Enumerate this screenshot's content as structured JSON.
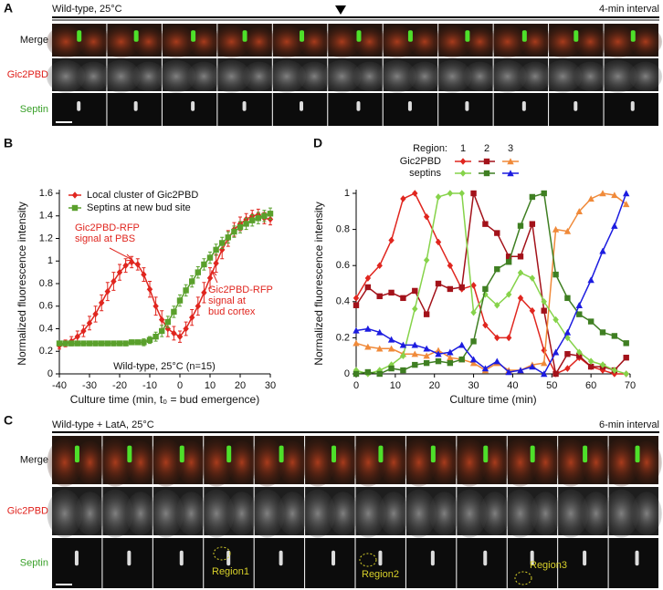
{
  "panel_a": {
    "label": "A",
    "condition": "Wild-type, 25°C",
    "interval": "4-min interval",
    "rows": [
      "Merge",
      "Gic2PBD",
      "Septin"
    ]
  },
  "panel_c": {
    "label": "C",
    "condition": "Wild-type + LatA, 25°C",
    "interval": "6-min interval",
    "rows": [
      "Merge",
      "Gic2PBD",
      "Septin"
    ],
    "regions": [
      "Region1",
      "Region2",
      "Region3"
    ]
  },
  "chart_data": [
    {
      "type": "line",
      "panel": "B",
      "x_label": "Culture time (min, t₀ = bud emergence)",
      "y_label": "Normalized fluorescence intensity",
      "xlim": [
        -40,
        30
      ],
      "xticks": [
        -40,
        -30,
        -20,
        -10,
        0,
        10,
        20,
        30
      ],
      "ylim": [
        0,
        1.6
      ],
      "yticks": [
        0,
        0.2,
        0.4,
        0.6,
        0.8,
        1,
        1.2,
        1.4,
        1.6
      ],
      "legend": "upper left",
      "annotations": [
        {
          "lines": [
            "Gic2PBD-RFP",
            "signal at PBS"
          ]
        },
        {
          "lines": [
            "Gic2PBD-RFP",
            "signal at",
            "bud cortex"
          ]
        },
        {
          "lines": [
            "Wild-type, 25°C (n=15)"
          ]
        }
      ],
      "x": [
        -40,
        -38,
        -36,
        -34,
        -32,
        -30,
        -28,
        -26,
        -24,
        -22,
        -20,
        -18,
        -16,
        -14,
        -12,
        -10,
        -8,
        -6,
        -4,
        -2,
        0,
        2,
        4,
        6,
        8,
        10,
        12,
        14,
        16,
        18,
        20,
        22,
        24,
        26,
        28,
        30
      ],
      "series": [
        {
          "name": "Local cluster of Gic2PBD",
          "color": "#e0261f",
          "marker": "diamond",
          "values": [
            0.25,
            0.27,
            0.29,
            0.33,
            0.38,
            0.45,
            0.53,
            0.63,
            0.73,
            0.82,
            0.9,
            0.96,
            0.99,
            0.97,
            0.88,
            0.75,
            0.6,
            0.48,
            0.4,
            0.36,
            0.33,
            0.4,
            0.5,
            0.6,
            0.72,
            0.85,
            0.98,
            1.1,
            1.2,
            1.28,
            1.33,
            1.37,
            1.4,
            1.41,
            1.38,
            1.37
          ],
          "errors": [
            0.03,
            0.03,
            0.04,
            0.05,
            0.05,
            0.06,
            0.07,
            0.07,
            0.08,
            0.08,
            0.07,
            0.06,
            0.05,
            0.05,
            0.06,
            0.07,
            0.08,
            0.08,
            0.07,
            0.06,
            0.05,
            0.06,
            0.07,
            0.08,
            0.09,
            0.09,
            0.08,
            0.08,
            0.07,
            0.06,
            0.06,
            0.05,
            0.05,
            0.05,
            0.05,
            0.05
          ]
        },
        {
          "name": "Septins at new bud site",
          "color": "#5aa02c",
          "marker": "square",
          "values": [
            0.27,
            0.27,
            0.27,
            0.27,
            0.27,
            0.27,
            0.27,
            0.27,
            0.27,
            0.27,
            0.27,
            0.27,
            0.28,
            0.28,
            0.28,
            0.3,
            0.33,
            0.38,
            0.46,
            0.55,
            0.65,
            0.74,
            0.82,
            0.9,
            0.97,
            1.03,
            1.1,
            1.16,
            1.21,
            1.26,
            1.3,
            1.33,
            1.36,
            1.38,
            1.4,
            1.42
          ],
          "errors": [
            0.02,
            0.02,
            0.02,
            0.02,
            0.02,
            0.02,
            0.02,
            0.02,
            0.02,
            0.02,
            0.02,
            0.02,
            0.02,
            0.02,
            0.03,
            0.03,
            0.04,
            0.05,
            0.05,
            0.05,
            0.05,
            0.05,
            0.05,
            0.05,
            0.05,
            0.05,
            0.05,
            0.05,
            0.05,
            0.05,
            0.05,
            0.05,
            0.05,
            0.05,
            0.05,
            0.05
          ]
        }
      ]
    },
    {
      "type": "line",
      "panel": "D",
      "x_label": "Culture time (min)",
      "y_label": "Normalized fluorescence intensity",
      "xlim": [
        0,
        70
      ],
      "xticks": [
        0,
        10,
        20,
        30,
        40,
        50,
        60,
        70
      ],
      "ylim": [
        0,
        1
      ],
      "yticks": [
        0,
        0.2,
        0.4,
        0.6,
        0.8,
        1
      ],
      "legend": {
        "title": "Region:",
        "regions": [
          "1",
          "2",
          "3"
        ],
        "rows": [
          "Gic2PBD",
          "septins"
        ]
      },
      "x": [
        0,
        3,
        6,
        9,
        12,
        15,
        18,
        21,
        24,
        27,
        30,
        33,
        36,
        39,
        42,
        45,
        48,
        51,
        54,
        57,
        60,
        63,
        66,
        69
      ],
      "series": [
        {
          "color": "#e0261f",
          "marker": "diamond",
          "values": [
            0.42,
            0.53,
            0.6,
            0.74,
            0.97,
            1.0,
            0.87,
            0.73,
            0.6,
            0.47,
            0.49,
            0.27,
            0.2,
            0.2,
            0.42,
            0.35,
            0.13,
            0.0,
            0.03,
            0.09,
            0.04,
            0.02,
            0.0,
            0.0
          ]
        },
        {
          "color": "#a3121a",
          "marker": "square",
          "values": [
            0.38,
            0.48,
            0.43,
            0.45,
            0.42,
            0.46,
            0.33,
            0.5,
            0.47,
            0.48,
            1.0,
            0.83,
            0.78,
            0.65,
            0.65,
            0.83,
            0.35,
            0.0,
            0.11,
            0.1,
            0.04,
            0.04,
            0.02,
            0.09
          ]
        },
        {
          "color": "#f08a3a",
          "marker": "triangle",
          "values": [
            0.17,
            0.15,
            0.14,
            0.14,
            0.11,
            0.11,
            0.1,
            0.13,
            0.09,
            0.08,
            0.06,
            0.02,
            0.06,
            0.02,
            0.02,
            0.05,
            0.06,
            0.8,
            0.79,
            0.9,
            0.97,
            1.0,
            0.99,
            0.94
          ]
        },
        {
          "color": "#86d34a",
          "marker": "diamond",
          "values": [
            0.02,
            0.0,
            0.02,
            0.05,
            0.1,
            0.36,
            0.63,
            0.98,
            1.0,
            1.0,
            0.34,
            0.44,
            0.38,
            0.44,
            0.56,
            0.53,
            0.4,
            0.3,
            0.2,
            0.12,
            0.07,
            0.05,
            0.02,
            0.0
          ]
        },
        {
          "color": "#3f7f22",
          "marker": "square",
          "values": [
            0.0,
            0.01,
            0.0,
            0.03,
            0.02,
            0.05,
            0.06,
            0.07,
            0.06,
            0.08,
            0.18,
            0.47,
            0.58,
            0.62,
            0.82,
            0.98,
            1.0,
            0.55,
            0.42,
            0.33,
            0.29,
            0.23,
            0.21,
            0.17
          ]
        },
        {
          "color": "#1c1ce0",
          "marker": "triangle",
          "values": [
            0.24,
            0.25,
            0.23,
            0.19,
            0.16,
            0.16,
            0.14,
            0.11,
            0.12,
            0.16,
            0.08,
            0.03,
            0.07,
            0.01,
            0.02,
            0.04,
            0.0,
            0.12,
            0.23,
            0.38,
            0.52,
            0.68,
            0.82,
            1.0
          ]
        }
      ]
    }
  ]
}
